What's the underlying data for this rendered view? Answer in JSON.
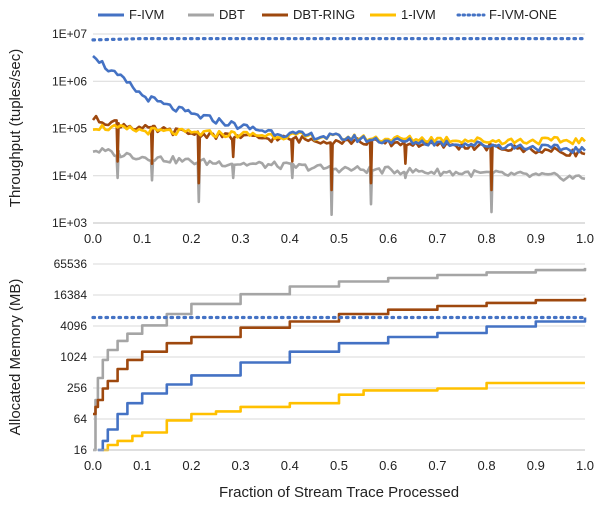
{
  "legend": [
    {
      "name": "F-IVM",
      "color": "#4472C4",
      "style": "solid"
    },
    {
      "name": "DBT",
      "color": "#A5A5A5",
      "style": "solid"
    },
    {
      "name": "DBT-RING",
      "color": "#9E480E",
      "style": "solid"
    },
    {
      "name": "1-IVM",
      "color": "#FFC000",
      "style": "solid"
    },
    {
      "name": "F-IVM-ONE",
      "color": "#4472C4",
      "style": "dotted"
    }
  ],
  "xlabel": "Fraction of Stream Trace Processed",
  "chart_data": [
    {
      "type": "line",
      "ylabel": "Throughput (tuples/sec)",
      "yscale": "log10",
      "ylim": [
        1000,
        10000000
      ],
      "ytick_labels": [
        "1E+03",
        "1E+04",
        "1E+05",
        "1E+06",
        "1E+07"
      ],
      "xlim": [
        0,
        1
      ],
      "xtick_labels": [
        "0.0",
        "0.1",
        "0.2",
        "0.3",
        "0.4",
        "0.5",
        "0.6",
        "0.7",
        "0.8",
        "0.9",
        "1.0"
      ],
      "grid": "horizontal",
      "series": [
        {
          "name": "F-IVM",
          "x": [
            0,
            0.02,
            0.04,
            0.06,
            0.08,
            0.1,
            0.15,
            0.2,
            0.25,
            0.3,
            0.35,
            0.4,
            0.5,
            0.6,
            0.7,
            0.8,
            0.9,
            1.0
          ],
          "y": [
            4000000,
            2300000,
            1500000,
            1100000,
            750000,
            500000,
            300000,
            200000,
            150000,
            110000,
            90000,
            75000,
            65000,
            55000,
            50000,
            45000,
            40000,
            35000
          ]
        },
        {
          "name": "DBT",
          "x": [
            0,
            0.1,
            0.2,
            0.3,
            0.4,
            0.5,
            0.6,
            0.7,
            0.8,
            0.9,
            1.0
          ],
          "y": [
            35000,
            25000,
            20000,
            18000,
            16000,
            14000,
            13000,
            12000,
            11000,
            10000,
            9000
          ],
          "dips": [
            {
              "x": 0.05,
              "y": 9000
            },
            {
              "x": 0.12,
              "y": 8000
            },
            {
              "x": 0.215,
              "y": 2800
            },
            {
              "x": 0.285,
              "y": 9000
            },
            {
              "x": 0.405,
              "y": 9000
            },
            {
              "x": 0.485,
              "y": 1500
            },
            {
              "x": 0.565,
              "y": 2500
            },
            {
              "x": 0.635,
              "y": 9000
            },
            {
              "x": 0.81,
              "y": 1700
            }
          ]
        },
        {
          "name": "DBT-RING",
          "x": [
            0,
            0.1,
            0.2,
            0.3,
            0.4,
            0.5,
            0.6,
            0.7,
            0.8,
            0.9,
            1.0
          ],
          "y": [
            160000,
            100000,
            80000,
            65000,
            60000,
            55000,
            50000,
            45000,
            40000,
            35000,
            30000
          ],
          "dips": [
            {
              "x": 0.05,
              "y": 20000
            },
            {
              "x": 0.12,
              "y": 18000
            },
            {
              "x": 0.215,
              "y": 7000
            },
            {
              "x": 0.285,
              "y": 25000
            },
            {
              "x": 0.405,
              "y": 20000
            },
            {
              "x": 0.485,
              "y": 5000
            },
            {
              "x": 0.565,
              "y": 7000
            },
            {
              "x": 0.635,
              "y": 18000
            },
            {
              "x": 0.81,
              "y": 5000
            }
          ]
        },
        {
          "name": "1-IVM",
          "x": [
            0,
            0.1,
            0.2,
            0.3,
            0.4,
            0.5,
            0.6,
            0.7,
            0.8,
            0.9,
            1.0
          ],
          "y": [
            110000,
            90000,
            80000,
            75000,
            70000,
            65000,
            60000,
            60000,
            55000,
            55000,
            55000
          ]
        },
        {
          "name": "F-IVM-ONE",
          "x": [
            0,
            0.1,
            0.2,
            0.3,
            0.4,
            0.5,
            0.6,
            0.7,
            0.8,
            0.9,
            1.0
          ],
          "y": [
            7500000,
            8000000,
            8000000,
            8000000,
            8000000,
            8000000,
            8000000,
            8000000,
            8000000,
            8000000,
            8000000
          ]
        }
      ]
    },
    {
      "type": "line",
      "ylabel": "Allocated Memory (MB)",
      "yscale": "log2",
      "ylim": [
        16,
        65536
      ],
      "ytick_labels": [
        "16",
        "64",
        "256",
        "1024",
        "4096",
        "16384",
        "65536"
      ],
      "xlim": [
        0,
        1
      ],
      "xtick_labels": [
        "0.0",
        "0.1",
        "0.2",
        "0.3",
        "0.4",
        "0.5",
        "0.6",
        "0.7",
        "0.8",
        "0.9",
        "1.0"
      ],
      "grid": "horizontal",
      "series": [
        {
          "name": "F-IVM",
          "x": [
            0.01,
            0.02,
            0.03,
            0.05,
            0.07,
            0.1,
            0.15,
            0.2,
            0.3,
            0.4,
            0.5,
            0.6,
            0.7,
            0.8,
            0.9,
            1.0
          ],
          "y": [
            16,
            24,
            40,
            80,
            130,
            200,
            300,
            450,
            800,
            1300,
            1900,
            2500,
            3000,
            4000,
            5000,
            6000
          ]
        },
        {
          "name": "DBT",
          "x": [
            0,
            0.005,
            0.01,
            0.02,
            0.03,
            0.05,
            0.07,
            0.1,
            0.15,
            0.2,
            0.3,
            0.4,
            0.5,
            0.6,
            0.7,
            0.8,
            0.9,
            1.0
          ],
          "y": [
            16,
            150,
            400,
            900,
            1400,
            2100,
            2900,
            4200,
            7000,
            11000,
            17000,
            24000,
            30000,
            35000,
            40000,
            45000,
            50000,
            55000
          ]
        },
        {
          "name": "DBT-RING",
          "x": [
            0,
            0.005,
            0.01,
            0.02,
            0.03,
            0.05,
            0.07,
            0.1,
            0.15,
            0.2,
            0.3,
            0.4,
            0.5,
            0.6,
            0.7,
            0.8,
            0.9,
            1.0
          ],
          "y": [
            80,
            110,
            150,
            250,
            350,
            600,
            900,
            1300,
            1900,
            2500,
            3800,
            5000,
            7000,
            8500,
            10000,
            11500,
            13000,
            14500
          ]
        },
        {
          "name": "1-IVM",
          "x": [
            0.02,
            0.03,
            0.05,
            0.08,
            0.1,
            0.15,
            0.2,
            0.25,
            0.3,
            0.4,
            0.5,
            0.55,
            0.7,
            0.8,
            0.9,
            1.0
          ],
          "y": [
            16,
            20,
            24,
            30,
            35,
            60,
            80,
            90,
            110,
            130,
            190,
            230,
            250,
            320,
            320,
            320
          ]
        },
        {
          "name": "F-IVM-ONE",
          "x": [
            0,
            0.1,
            0.2,
            0.3,
            0.4,
            0.5,
            0.6,
            0.7,
            0.8,
            0.9,
            1.0
          ],
          "y": [
            6000,
            6000,
            6000,
            6000,
            6000,
            6000,
            6000,
            6000,
            6000,
            6000,
            6000
          ]
        }
      ]
    }
  ]
}
